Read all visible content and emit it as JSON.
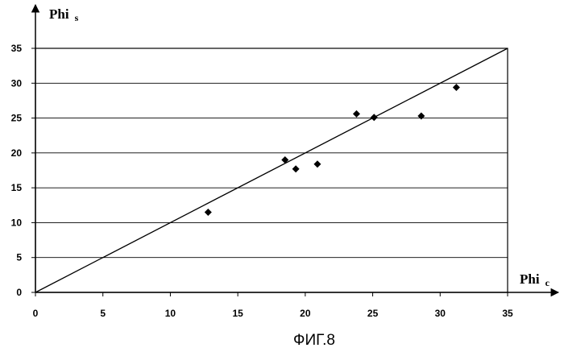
{
  "chart_data": {
    "type": "scatter",
    "title": "",
    "xlabel": "Phi",
    "xlabel_sub": "c",
    "ylabel": "Phi",
    "ylabel_sub": "s",
    "xlim": [
      0,
      35
    ],
    "ylim": [
      0,
      35
    ],
    "x_ticks": [
      0,
      5,
      10,
      15,
      20,
      25,
      30,
      35
    ],
    "y_ticks": [
      0,
      5,
      10,
      15,
      20,
      25,
      30,
      35
    ],
    "grid": "horizontal",
    "legend": "none",
    "series": [
      {
        "marker": "diamond",
        "color": "#000000",
        "points": [
          {
            "x": 12.8,
            "y": 11.5
          },
          {
            "x": 18.5,
            "y": 19.0
          },
          {
            "x": 19.3,
            "y": 17.7
          },
          {
            "x": 20.9,
            "y": 18.4
          },
          {
            "x": 23.8,
            "y": 25.6
          },
          {
            "x": 25.1,
            "y": 25.1
          },
          {
            "x": 28.6,
            "y": 25.3
          },
          {
            "x": 31.2,
            "y": 29.4
          }
        ]
      }
    ],
    "reference_line": {
      "from": [
        0,
        0
      ],
      "to": [
        35,
        35
      ]
    },
    "caption": "ФИГ.8"
  }
}
